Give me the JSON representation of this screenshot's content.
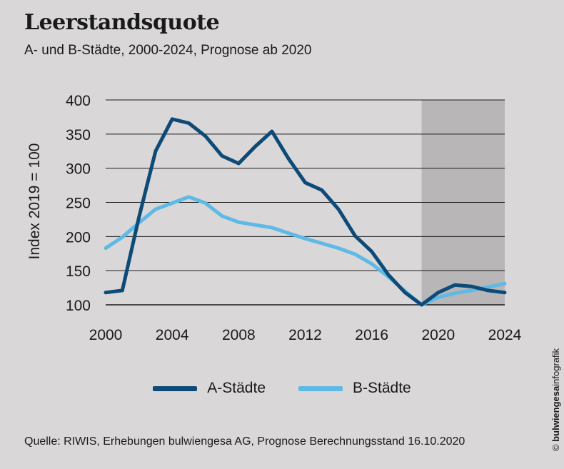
{
  "header": {
    "title": "Leerstandsquote",
    "subtitle": "A- und B-Städte, 2000-2024, Prognose ab 2020"
  },
  "footer": {
    "source": "Quelle: RIWIS, Erhebungen bulwiengesa AG, Prognose Berechnungsstand 16.10.2020",
    "credit_symbol": "©",
    "credit_bold": "bulwiengesa",
    "credit_rest": "infografik"
  },
  "colors": {
    "series_a": "#0d4a78",
    "series_b": "#5fb9e6",
    "forecast_band": "#b8b6b6",
    "grid": "#1a1a1a"
  },
  "chart_data": {
    "type": "line",
    "title": "Leerstandsquote",
    "subtitle": "A- und B-Städte, 2000-2024, Prognose ab 2020",
    "ylabel": "Index 2019 = 100",
    "xlabel": "",
    "x": [
      2000,
      2001,
      2002,
      2003,
      2004,
      2005,
      2006,
      2007,
      2008,
      2009,
      2010,
      2011,
      2012,
      2013,
      2014,
      2015,
      2016,
      2017,
      2018,
      2019,
      2020,
      2021,
      2022,
      2023,
      2024
    ],
    "xlim": [
      2000,
      2024
    ],
    "ylim": [
      100,
      400
    ],
    "xticks": [
      2000,
      2004,
      2008,
      2012,
      2016,
      2020,
      2024
    ],
    "yticks": [
      100,
      150,
      200,
      250,
      300,
      350,
      400
    ],
    "grid": true,
    "legend_position": "bottom-center",
    "forecast_range": [
      2019,
      2024
    ],
    "series": [
      {
        "name": "A-Städte",
        "values": [
          118,
          121,
          228,
          325,
          372,
          366,
          347,
          318,
          307,
          332,
          354,
          314,
          279,
          268,
          240,
          201,
          178,
          144,
          118,
          100,
          118,
          129,
          127,
          121,
          118
        ]
      },
      {
        "name": "B-Städte",
        "values": [
          183,
          199,
          220,
          240,
          249,
          258,
          249,
          230,
          221,
          217,
          213,
          205,
          197,
          190,
          183,
          174,
          160,
          141,
          120,
          100,
          111,
          117,
          121,
          126,
          131
        ]
      }
    ]
  }
}
